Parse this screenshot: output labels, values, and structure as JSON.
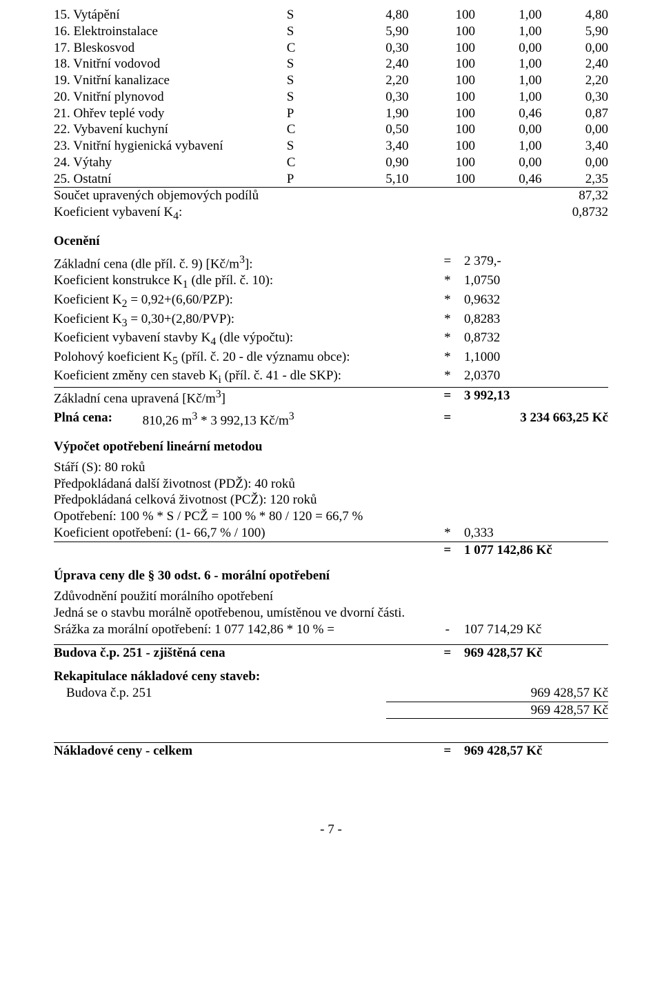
{
  "table": {
    "rows": [
      {
        "num": "15.",
        "label": "Vytápění",
        "code": "S",
        "a": "4,80",
        "b": "100",
        "c": "1,00",
        "d": "4,80"
      },
      {
        "num": "16.",
        "label": "Elektroinstalace",
        "code": "S",
        "a": "5,90",
        "b": "100",
        "c": "1,00",
        "d": "5,90"
      },
      {
        "num": "17.",
        "label": "Bleskosvod",
        "code": "C",
        "a": "0,30",
        "b": "100",
        "c": "0,00",
        "d": "0,00"
      },
      {
        "num": "18.",
        "label": "Vnitřní vodovod",
        "code": "S",
        "a": "2,40",
        "b": "100",
        "c": "1,00",
        "d": "2,40"
      },
      {
        "num": "19.",
        "label": "Vnitřní kanalizace",
        "code": "S",
        "a": "2,20",
        "b": "100",
        "c": "1,00",
        "d": "2,20"
      },
      {
        "num": "20.",
        "label": "Vnitřní plynovod",
        "code": "S",
        "a": "0,30",
        "b": "100",
        "c": "1,00",
        "d": "0,30"
      },
      {
        "num": "21.",
        "label": "Ohřev teplé vody",
        "code": "P",
        "a": "1,90",
        "b": "100",
        "c": "0,46",
        "d": "0,87"
      },
      {
        "num": "22.",
        "label": "Vybavení kuchyní",
        "code": "C",
        "a": "0,50",
        "b": "100",
        "c": "0,00",
        "d": "0,00"
      },
      {
        "num": "23.",
        "label": "Vnitřní hygienická vybavení",
        "code": "S",
        "a": "3,40",
        "b": "100",
        "c": "1,00",
        "d": "3,40"
      },
      {
        "num": "24.",
        "label": "Výtahy",
        "code": "C",
        "a": "0,90",
        "b": "100",
        "c": "0,00",
        "d": "0,00"
      },
      {
        "num": "25.",
        "label": "Ostatní",
        "code": "P",
        "a": "5,10",
        "b": "100",
        "c": "0,46",
        "d": "2,35"
      }
    ],
    "sum1_label": "Součet upravených objemových podílů",
    "sum1_val": "87,32",
    "sum2_label": "Koeficient vybavení K",
    "sum2_sub": "4",
    "sum2_suffix": ":",
    "sum2_val": "0,8732"
  },
  "oceneni": {
    "title": "Ocenění",
    "lines": [
      {
        "label_html": "Základní cena (dle příl. č. 9) [Kč/m<sup>3</sup>]:",
        "op": "=",
        "val": "2 379,-"
      },
      {
        "label_html": "Koeficient konstrukce K<sub>1</sub> (dle příl. č. 10):",
        "op": "*",
        "val": "1,0750"
      },
      {
        "label_html": "Koeficient K<sub>2</sub> = 0,92+(6,60/PZP):",
        "op": "*",
        "val": "0,9632"
      },
      {
        "label_html": "Koeficient K<sub>3</sub> = 0,30+(2,80/PVP):",
        "op": "*",
        "val": "0,8283"
      },
      {
        "label_html": "Koeficient vybavení stavby K<sub>4</sub> (dle výpočtu):",
        "op": "*",
        "val": "0,8732"
      },
      {
        "label_html": "Polohový koeficient K<sub>5</sub> (příl. č. 20 - dle významu obce):",
        "op": "*",
        "val": "1,1000"
      },
      {
        "label_html": "Koeficient změny cen staveb K<sub>i</sub> (příl. č. 41 - dle SKP):",
        "op": "*",
        "val": "2,0370"
      }
    ],
    "upravena_label_html": "Základní cena upravená [Kč/m<sup>3</sup>]",
    "upravena_op": "=",
    "upravena_val": "3 992,13",
    "plna_label": "Plná cena:",
    "plna_expr_html": "810,26 m<sup>3</sup> * 3 992,13 Kč/m<sup>3</sup>",
    "plna_op": "=",
    "plna_val": "3 234 663,25 Kč"
  },
  "opotrebeni": {
    "title": "Výpočet opotřebení lineární metodou",
    "lines": [
      "Stáří (S): 80 roků",
      "Předpokládaná další životnost (PDŽ): 40 roků",
      "Předpokládaná celková životnost (PCŽ): 120 roků",
      "Opotřebení: 100 % * S / PCŽ = 100 % * 80 / 120 = 66,7 %"
    ],
    "koef_label": "Koeficient opotřebení: (1- 66,7 % / 100)",
    "koef_op": "*",
    "koef_val": "0,333",
    "result_op": "=",
    "result_val": "1 077 142,86 Kč"
  },
  "uprava": {
    "title": "Úprava ceny dle § 30 odst. 6 - morální opotřebení",
    "body1": "Zdůvodnění použití morálního opotřebení",
    "body2": "Jedná se o stavbu morálně opotřebenou, umístěnou ve dvorní části.",
    "srazka_label": "Srážka za morální opotřebení: 1 077 142,86 * 10 % =",
    "srazka_op": "-",
    "srazka_val": "107 714,29 Kč"
  },
  "zjistena": {
    "label": "Budova č.p. 251 - zjištěná cena",
    "op": "=",
    "val": "969 428,57 Kč"
  },
  "rekap": {
    "title": "Rekapitulace nákladové ceny staveb:",
    "row_label": "Budova č.p. 251",
    "row_val": "969 428,57 Kč",
    "sum_val": "969 428,57 Kč"
  },
  "celkem": {
    "label": "Nákladové ceny - celkem",
    "op": "=",
    "val": "969 428,57 Kč"
  },
  "page_num": "- 7 -"
}
